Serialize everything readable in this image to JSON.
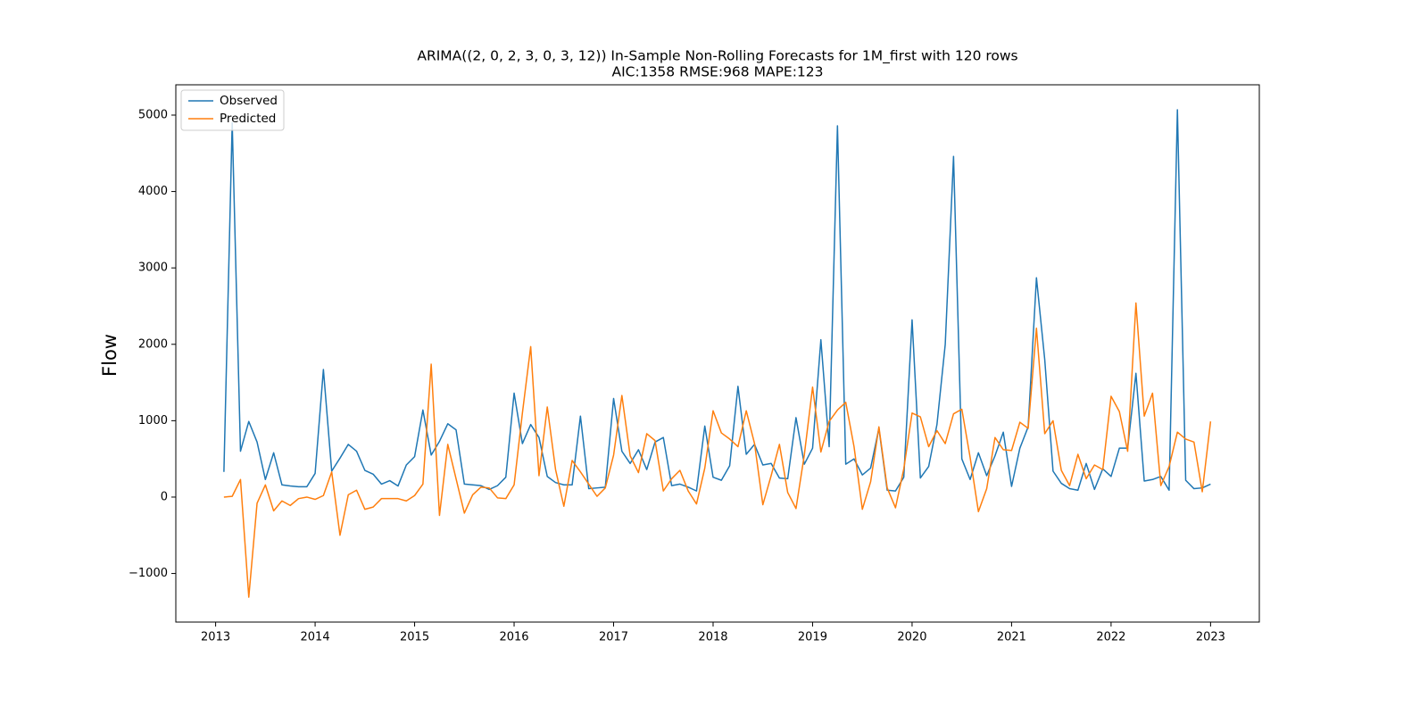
{
  "chart_data": {
    "type": "line",
    "title": "ARIMA((2, 0, 2, 3, 0, 3, 12)) In-Sample Non-Rolling Forecasts for 1M_first with 120 rows",
    "subtitle": "AIC:1358 RMSE:968 MAPE:123",
    "ylabel": "Flow",
    "legend": "upper left",
    "grid": false,
    "x": [
      "2013-02",
      "2013-03",
      "2013-04",
      "2013-05",
      "2013-06",
      "2013-07",
      "2013-08",
      "2013-09",
      "2013-10",
      "2013-11",
      "2013-12",
      "2014-01",
      "2014-02",
      "2014-03",
      "2014-04",
      "2014-05",
      "2014-06",
      "2014-07",
      "2014-08",
      "2014-09",
      "2014-10",
      "2014-11",
      "2014-12",
      "2015-01",
      "2015-02",
      "2015-03",
      "2015-04",
      "2015-05",
      "2015-06",
      "2015-07",
      "2015-08",
      "2015-09",
      "2015-10",
      "2015-11",
      "2015-12",
      "2016-01",
      "2016-02",
      "2016-03",
      "2016-04",
      "2016-05",
      "2016-06",
      "2016-07",
      "2016-08",
      "2016-09",
      "2016-10",
      "2016-11",
      "2016-12",
      "2017-01",
      "2017-02",
      "2017-03",
      "2017-04",
      "2017-05",
      "2017-06",
      "2017-07",
      "2017-08",
      "2017-09",
      "2017-10",
      "2017-11",
      "2017-12",
      "2018-01",
      "2018-02",
      "2018-03",
      "2018-04",
      "2018-05",
      "2018-06",
      "2018-07",
      "2018-08",
      "2018-09",
      "2018-10",
      "2018-11",
      "2018-12",
      "2019-01",
      "2019-02",
      "2019-03",
      "2019-04",
      "2019-05",
      "2019-06",
      "2019-07",
      "2019-08",
      "2019-09",
      "2019-10",
      "2019-11",
      "2019-12",
      "2020-01",
      "2020-02",
      "2020-03",
      "2020-04",
      "2020-05",
      "2020-06",
      "2020-07",
      "2020-08",
      "2020-09",
      "2020-10",
      "2020-11",
      "2020-12",
      "2021-01",
      "2021-02",
      "2021-03",
      "2021-04",
      "2021-05",
      "2021-06",
      "2021-07",
      "2021-08",
      "2021-09",
      "2021-10",
      "2021-11",
      "2021-12",
      "2022-01",
      "2022-02",
      "2022-03",
      "2022-04",
      "2022-05",
      "2022-06",
      "2022-07",
      "2022-08",
      "2022-09",
      "2022-10",
      "2022-11",
      "2022-12",
      "2023-01"
    ],
    "series": [
      {
        "name": "Observed",
        "color": "#1f77b4",
        "values": [
          330,
          4900,
          600,
          990,
          720,
          230,
          580,
          160,
          145,
          135,
          135,
          310,
          1670,
          340,
          510,
          690,
          600,
          350,
          300,
          170,
          215,
          145,
          420,
          530,
          1140,
          550,
          730,
          960,
          880,
          170,
          160,
          150,
          100,
          150,
          260,
          1360,
          700,
          950,
          780,
          270,
          190,
          160,
          160,
          1060,
          110,
          120,
          130,
          1290,
          600,
          440,
          620,
          360,
          720,
          780,
          150,
          170,
          130,
          80,
          930,
          260,
          220,
          410,
          1450,
          560,
          690,
          420,
          440,
          250,
          240,
          1040,
          430,
          640,
          2060,
          660,
          4860,
          430,
          500,
          290,
          380,
          900,
          90,
          80,
          260,
          2320,
          250,
          400,
          950,
          2000,
          4460,
          500,
          230,
          580,
          280,
          540,
          850,
          140,
          640,
          920,
          2870,
          1800,
          340,
          180,
          110,
          90,
          440,
          100,
          370,
          270,
          640,
          640,
          1620,
          210,
          230,
          270,
          90,
          5070,
          220,
          110,
          120,
          170
        ]
      },
      {
        "name": "Predicted",
        "color": "#ff7f0e",
        "values": [
          0,
          10,
          230,
          -1310,
          -80,
          160,
          -180,
          -50,
          -110,
          -20,
          0,
          -30,
          20,
          330,
          -500,
          30,
          90,
          -160,
          -130,
          -20,
          -20,
          -20,
          -50,
          20,
          170,
          1740,
          -240,
          690,
          240,
          -210,
          30,
          130,
          120,
          -10,
          -20,
          160,
          1100,
          1970,
          280,
          1180,
          360,
          -120,
          480,
          330,
          170,
          10,
          120,
          550,
          1330,
          540,
          320,
          830,
          740,
          80,
          240,
          350,
          80,
          -90,
          380,
          1130,
          840,
          760,
          660,
          1130,
          700,
          -100,
          280,
          690,
          60,
          -150,
          550,
          1440,
          590,
          990,
          1140,
          1240,
          660,
          -160,
          200,
          920,
          120,
          -140,
          370,
          1100,
          1050,
          660,
          870,
          700,
          1090,
          1150,
          520,
          -190,
          110,
          780,
          620,
          610,
          980,
          900,
          2210,
          830,
          1000,
          350,
          150,
          560,
          240,
          420,
          360,
          1320,
          1120,
          600,
          2540,
          1060,
          1360,
          150,
          400,
          850,
          760,
          720,
          70,
          990
        ]
      }
    ],
    "xlim": [
      2012.6,
      2023.49
    ],
    "xticks": [
      2013,
      2014,
      2015,
      2016,
      2017,
      2018,
      2019,
      2020,
      2021,
      2022,
      2023
    ],
    "ylim": [
      -1636,
      5397
    ],
    "yticks": [
      {
        "value": -1000,
        "label": "−1000"
      },
      0,
      1000,
      2000,
      3000,
      4000,
      5000
    ]
  }
}
